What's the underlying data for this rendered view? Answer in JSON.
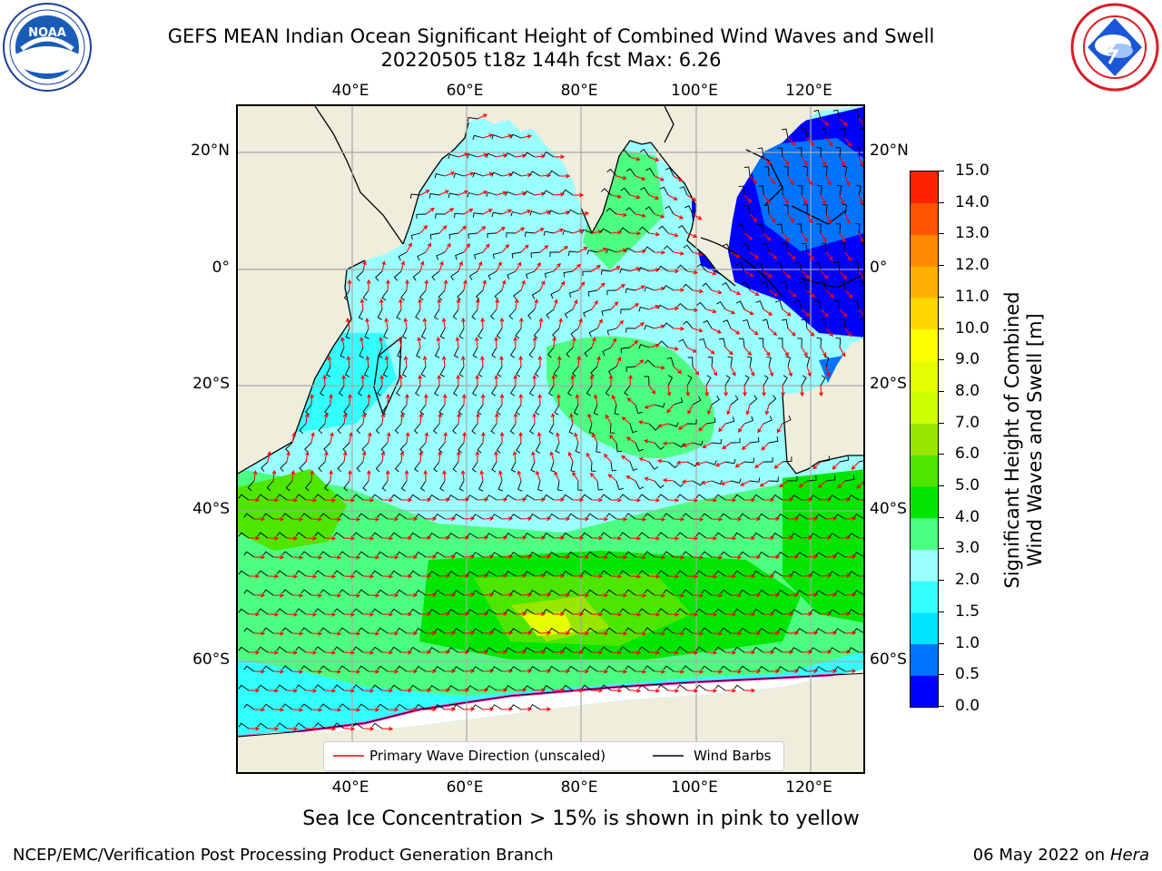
{
  "header": {
    "title_line1": "GEFS MEAN Indian Ocean Significant Height of Combined Wind Waves and Swell",
    "title_line2": "20220505 t18z 144h fcst   Max: 6.26"
  },
  "logos": {
    "noaa": {
      "text": "NOAA",
      "ring_text": "NATIONAL OCEANIC AND ATMOSPHERIC ADMINISTRATION · U.S. DEPARTMENT OF COMMERCE"
    },
    "nws": {
      "ring_text": "NATIONAL WEATHER SERVICE"
    }
  },
  "map": {
    "region": "Indian Ocean",
    "lon_ticks": [
      "40°E",
      "60°E",
      "80°E",
      "100°E",
      "120°E"
    ],
    "lat_ticks": [
      "20°N",
      "0°",
      "20°S",
      "40°S",
      "60°S"
    ],
    "colors": {
      "land": "#efeddc",
      "sea_ice": "#ffffff",
      "grid": "#a8a8a8"
    }
  },
  "legend": {
    "wave_direction_label": "Primary Wave Direction (unscaled)",
    "wind_barbs_label": "Wind Barbs",
    "wave_direction_color": "#ff0000",
    "wind_barbs_color": "#000000"
  },
  "colorbar": {
    "title_line1": "Significant Height of Combined",
    "title_line2": "Wind Waves and Swell [m]",
    "labels": [
      "0.0",
      "0.5",
      "1.0",
      "1.5",
      "2.0",
      "3.0",
      "4.0",
      "5.0",
      "6.0",
      "7.0",
      "8.0",
      "9.0",
      "10.0",
      "11.0",
      "12.0",
      "13.0",
      "14.0",
      "15.0"
    ],
    "colors": [
      "#0000ff",
      "#0073ff",
      "#00e5ff",
      "#33ffff",
      "#99ffff",
      "#4dff80",
      "#00e600",
      "#4de600",
      "#99e600",
      "#ccff00",
      "#e6ff00",
      "#ffff00",
      "#ffd700",
      "#ffb000",
      "#ff8800",
      "#ff5500",
      "#ff2200"
    ]
  },
  "footer": {
    "sea_ice_note": "Sea Ice Concentration > 15% is shown in pink to yellow",
    "producer": "NCEP/EMC/Verification Post Processing Product Generation Branch",
    "date": "06 May 2022 on",
    "machine": "Hera"
  }
}
